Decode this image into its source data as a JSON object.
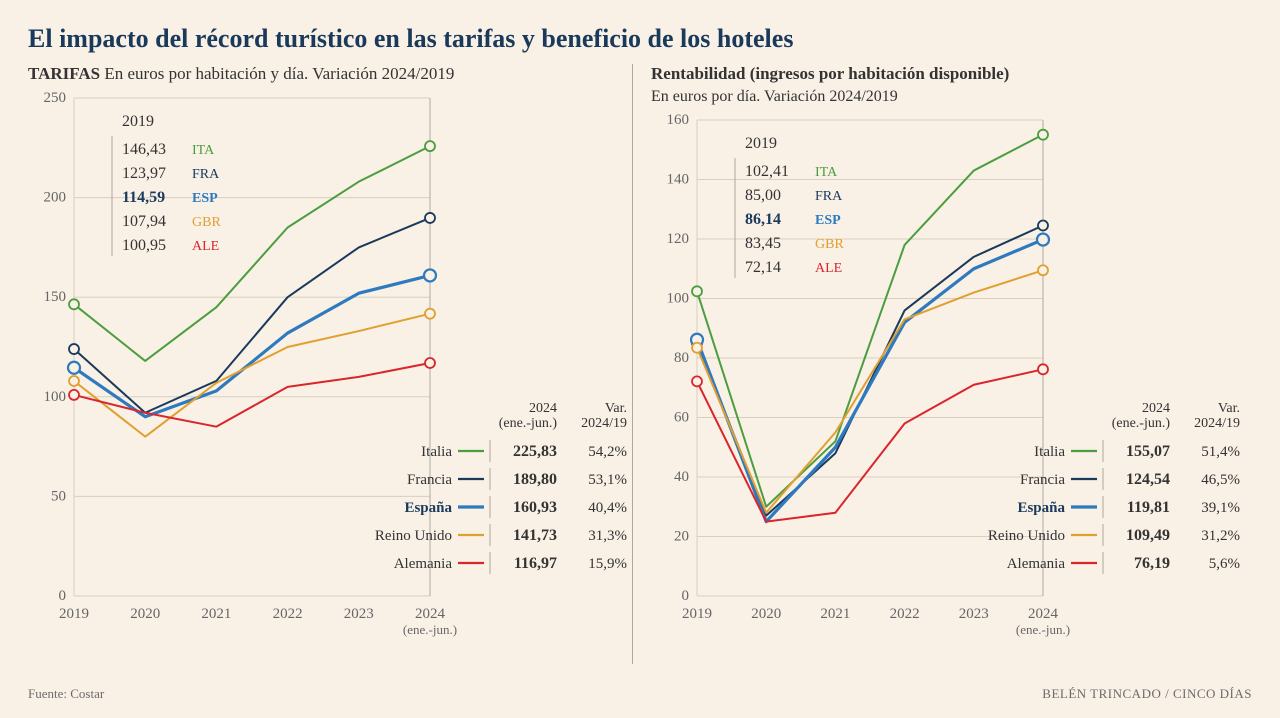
{
  "title": "El impacto del récord turístico en las tarifas y beneficio de los hoteles",
  "source_label": "Fuente: Costar",
  "credit": "BELÉN TRINCADO / CINCO DÍAS",
  "common": {
    "x_categories": [
      "2019",
      "2020",
      "2021",
      "2022",
      "2023",
      "2024\n(ene.-jun.)"
    ],
    "palette": {
      "ITA": "#4a9e3f",
      "FRA": "#1a3a5c",
      "ESP": "#2e7abf",
      "GBR": "#e0a02f",
      "ALE": "#d9262c"
    },
    "grid_color": "#d8cfc0",
    "tick_color": "#666",
    "text_color": "#333",
    "highlight_color": "#1a3a5c"
  },
  "left": {
    "title_strong": "TARIFAS",
    "title_rest": " En euros por habitación y día. Variación 2024/2019",
    "ylim": [
      0,
      250
    ],
    "ytick_step": 50,
    "legend_2019_title": "2019",
    "legend_2019": [
      {
        "val": "146,43",
        "code": "ITA",
        "color": "#4a9e3f"
      },
      {
        "val": "123,97",
        "code": "FRA",
        "color": "#1a3a5c"
      },
      {
        "val": "114,59",
        "code": "ESP",
        "color": "#2e7abf",
        "bold": true
      },
      {
        "val": "107,94",
        "code": "GBR",
        "color": "#e0a02f"
      },
      {
        "val": "100,95",
        "code": "ALE",
        "color": "#d9262c"
      }
    ],
    "series": [
      {
        "code": "ITA",
        "name": "Italia",
        "color": "#4a9e3f",
        "stroke": 2,
        "values": [
          146.43,
          118,
          145,
          185,
          208,
          225.83
        ]
      },
      {
        "code": "FRA",
        "name": "Francia",
        "color": "#1a3a5c",
        "stroke": 2,
        "values": [
          123.97,
          92,
          108,
          150,
          175,
          189.8
        ]
      },
      {
        "code": "ESP",
        "name": "España",
        "color": "#2e7abf",
        "stroke": 3.2,
        "values": [
          114.59,
          90,
          103,
          132,
          152,
          160.93
        ],
        "bold": true
      },
      {
        "code": "GBR",
        "name": "Reino Unido",
        "color": "#e0a02f",
        "stroke": 2,
        "values": [
          107.94,
          80,
          107,
          125,
          133,
          141.73
        ]
      },
      {
        "code": "ALE",
        "name": "Alemania",
        "color": "#d9262c",
        "stroke": 2,
        "values": [
          100.95,
          92,
          85,
          105,
          110,
          116.97
        ]
      }
    ],
    "table_head": {
      "c1": "2024\n(ene.-jun.)",
      "c2": "Var.\n2024/19"
    },
    "table_rows": [
      {
        "name": "Italia",
        "code": "ITA",
        "color": "#4a9e3f",
        "val": "225,83",
        "var": "54,2%"
      },
      {
        "name": "Francia",
        "code": "FRA",
        "color": "#1a3a5c",
        "val": "189,80",
        "var": "53,1%"
      },
      {
        "name": "España",
        "code": "ESP",
        "color": "#2e7abf",
        "val": "160,93",
        "var": "40,4%",
        "bold": true
      },
      {
        "name": "Reino Unido",
        "code": "GBR",
        "color": "#e0a02f",
        "val": "141,73",
        "var": "31,3%"
      },
      {
        "name": "Alemania",
        "code": "ALE",
        "color": "#d9262c",
        "val": "116,97",
        "var": "15,9%"
      }
    ]
  },
  "right": {
    "title_strong": "Rentabilidad (ingresos por habitación disponible)",
    "title_sub": "En euros por día. Variación 2024/2019",
    "ylim": [
      0,
      160
    ],
    "ytick_step": 20,
    "legend_2019_title": "2019",
    "legend_2019": [
      {
        "val": "102,41",
        "code": "ITA",
        "color": "#4a9e3f"
      },
      {
        "val": "85,00",
        "code": "FRA",
        "color": "#1a3a5c"
      },
      {
        "val": "86,14",
        "code": "ESP",
        "color": "#2e7abf",
        "bold": true
      },
      {
        "val": "83,45",
        "code": "GBR",
        "color": "#e0a02f"
      },
      {
        "val": "72,14",
        "code": "ALE",
        "color": "#d9262c"
      }
    ],
    "series": [
      {
        "code": "ITA",
        "name": "Italia",
        "color": "#4a9e3f",
        "stroke": 2,
        "values": [
          102.41,
          30,
          52,
          118,
          143,
          155.07
        ]
      },
      {
        "code": "FRA",
        "name": "Francia",
        "color": "#1a3a5c",
        "stroke": 2,
        "values": [
          85.0,
          27,
          48,
          96,
          114,
          124.54
        ]
      },
      {
        "code": "ESP",
        "name": "España",
        "color": "#2e7abf",
        "stroke": 3.2,
        "values": [
          86.14,
          25,
          50,
          92,
          110,
          119.81
        ],
        "bold": true
      },
      {
        "code": "GBR",
        "name": "Reino Unido",
        "color": "#e0a02f",
        "stroke": 2,
        "values": [
          83.45,
          28,
          55,
          93,
          102,
          109.49
        ]
      },
      {
        "code": "ALE",
        "name": "Alemania",
        "color": "#d9262c",
        "stroke": 2,
        "values": [
          72.14,
          25,
          28,
          58,
          71,
          76.19
        ]
      }
    ],
    "table_head": {
      "c1": "2024\n(ene.-jun.)",
      "c2": "Var.\n2024/19"
    },
    "table_rows": [
      {
        "name": "Italia",
        "code": "ITA",
        "color": "#4a9e3f",
        "val": "155,07",
        "var": "51,4%"
      },
      {
        "name": "Francia",
        "code": "FRA",
        "color": "#1a3a5c",
        "val": "124,54",
        "var": "46,5%"
      },
      {
        "name": "España",
        "code": "ESP",
        "color": "#2e7abf",
        "val": "119,81",
        "var": "39,1%",
        "bold": true
      },
      {
        "name": "Reino Unido",
        "code": "GBR",
        "color": "#e0a02f",
        "val": "109,49",
        "var": "31,2%"
      },
      {
        "name": "Alemania",
        "code": "ALE",
        "color": "#d9262c",
        "val": "76,19",
        "var": "5,6%"
      }
    ]
  }
}
